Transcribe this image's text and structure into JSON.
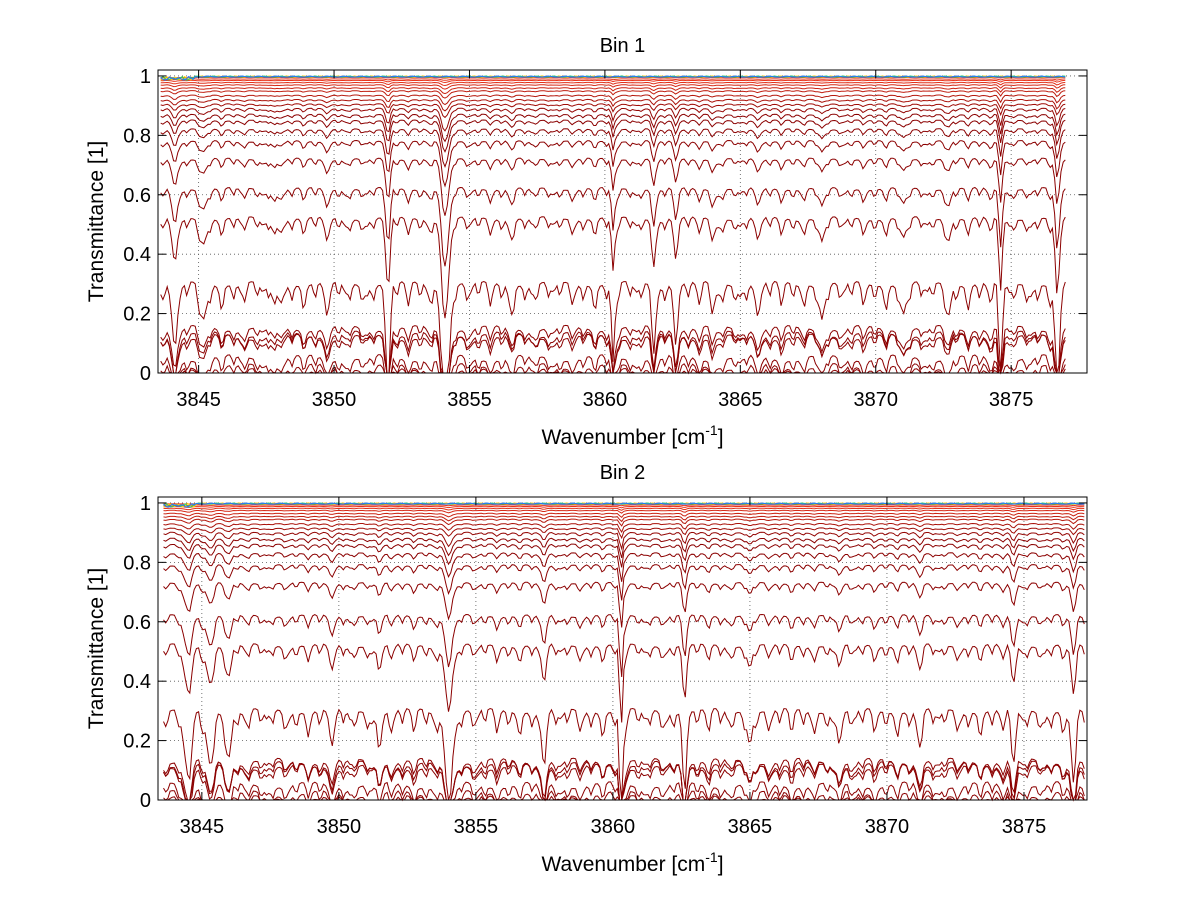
{
  "chart_data": [
    {
      "type": "line",
      "title": "Bin 1",
      "xlabel": "Wavenumber [cm",
      "xlabel_sup": "-1",
      "xlabel_end": "]",
      "ylabel": "Transmittance [1]",
      "xlim": [
        3843.5,
        3877.8
      ],
      "ylim": [
        0,
        1.02
      ],
      "x_range": [
        3843.6,
        3877
      ],
      "xticks": [
        3845,
        3850,
        3855,
        3860,
        3865,
        3870,
        3875
      ],
      "yticks": [
        0,
        0.2,
        0.4,
        0.6,
        0.8,
        1
      ],
      "grid": true,
      "series_levels": [
        0.003,
        0.02,
        0.05,
        0.12,
        0.13,
        0.15,
        0.3,
        0.52,
        0.62,
        0.72,
        0.78,
        0.82,
        0.85,
        0.87,
        0.89,
        0.905,
        0.92,
        0.935,
        0.95,
        0.96,
        0.97,
        0.978,
        0.985,
        0.99,
        0.995
      ],
      "absorption_lines": [
        {
          "x": 3844.1,
          "depth": 0.25,
          "width": 0.15
        },
        {
          "x": 3845.2,
          "depth": 0.15,
          "width": 0.15
        },
        {
          "x": 3847.8,
          "depth": 0.1,
          "width": 0.12
        },
        {
          "x": 3849.8,
          "depth": 0.08,
          "width": 0.12
        },
        {
          "x": 3852.0,
          "depth": 0.45,
          "width": 0.1
        },
        {
          "x": 3854.1,
          "depth": 0.65,
          "width": 0.18
        },
        {
          "x": 3856.5,
          "depth": 0.06,
          "width": 0.12
        },
        {
          "x": 3860.3,
          "depth": 0.35,
          "width": 0.08
        },
        {
          "x": 3861.8,
          "depth": 0.25,
          "width": 0.1
        },
        {
          "x": 3862.6,
          "depth": 0.2,
          "width": 0.1
        },
        {
          "x": 3864.0,
          "depth": 0.1,
          "width": 0.12
        },
        {
          "x": 3865.6,
          "depth": 0.08,
          "width": 0.12
        },
        {
          "x": 3868.0,
          "depth": 0.12,
          "width": 0.12
        },
        {
          "x": 3871.0,
          "depth": 0.12,
          "width": 0.12
        },
        {
          "x": 3872.7,
          "depth": 0.1,
          "width": 0.12
        },
        {
          "x": 3874.6,
          "depth": 0.5,
          "width": 0.08
        },
        {
          "x": 3876.7,
          "depth": 0.55,
          "width": 0.1
        }
      ]
    },
    {
      "type": "line",
      "title": "Bin 2",
      "xlabel": "Wavenumber [cm",
      "xlabel_sup": "-1",
      "xlabel_end": "]",
      "ylabel": "Transmittance [1]",
      "xlim": [
        3843.4,
        3877.3
      ],
      "ylim": [
        0,
        1.02
      ],
      "x_range": [
        3843.6,
        3877.2
      ],
      "xticks": [
        3845,
        3850,
        3855,
        3860,
        3865,
        3870,
        3875
      ],
      "yticks": [
        0,
        0.2,
        0.4,
        0.6,
        0.8,
        1
      ],
      "grid": true,
      "series_levels": [
        0.003,
        0.02,
        0.05,
        0.11,
        0.12,
        0.13,
        0.3,
        0.52,
        0.62,
        0.73,
        0.79,
        0.83,
        0.86,
        0.88,
        0.9,
        0.915,
        0.93,
        0.945,
        0.955,
        0.965,
        0.975,
        0.982,
        0.988,
        0.993,
        0.997
      ],
      "absorption_lines": [
        {
          "x": 3844.5,
          "depth": 0.3,
          "width": 0.18
        },
        {
          "x": 3845.3,
          "depth": 0.25,
          "width": 0.15
        },
        {
          "x": 3846.0,
          "depth": 0.2,
          "width": 0.12
        },
        {
          "x": 3849.8,
          "depth": 0.1,
          "width": 0.12
        },
        {
          "x": 3851.5,
          "depth": 0.12,
          "width": 0.12
        },
        {
          "x": 3854.0,
          "depth": 0.4,
          "width": 0.18
        },
        {
          "x": 3857.5,
          "depth": 0.2,
          "width": 0.12
        },
        {
          "x": 3860.3,
          "depth": 0.55,
          "width": 0.08
        },
        {
          "x": 3862.6,
          "depth": 0.3,
          "width": 0.1
        },
        {
          "x": 3865.0,
          "depth": 0.1,
          "width": 0.12
        },
        {
          "x": 3868.3,
          "depth": 0.1,
          "width": 0.12
        },
        {
          "x": 3871.2,
          "depth": 0.1,
          "width": 0.12
        },
        {
          "x": 3874.6,
          "depth": 0.25,
          "width": 0.1
        },
        {
          "x": 3876.8,
          "depth": 0.3,
          "width": 0.12
        }
      ]
    }
  ],
  "colors": {
    "deep": "#8b0000",
    "mid": "#e8341c",
    "top": [
      "#ff8c00",
      "#ffd200",
      "#33cc66",
      "#2277ff"
    ]
  }
}
